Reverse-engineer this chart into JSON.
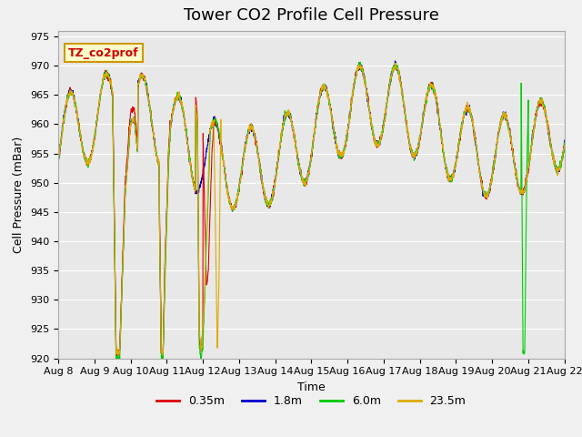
{
  "title": "Tower CO2 Profile Cell Pressure",
  "xlabel": "Time",
  "ylabel": "Cell Pressure (mBar)",
  "ylim": [
    920,
    976
  ],
  "yticks": [
    920,
    925,
    930,
    935,
    940,
    945,
    950,
    955,
    960,
    965,
    970,
    975
  ],
  "xtick_labels": [
    "Aug 8",
    "Aug 9",
    "Aug 10",
    "Aug 11",
    "Aug 12",
    "Aug 13",
    "Aug 14",
    "Aug 15",
    "Aug 16",
    "Aug 17",
    "Aug 18",
    "Aug 19",
    "Aug 20",
    "Aug 21",
    "Aug 22"
  ],
  "legend_label": "TZ_co2prof",
  "legend_box_color": "#ffffcc",
  "legend_box_edge": "#cc9900",
  "legend_text_color": "#cc0000",
  "series_labels": [
    "0.35m",
    "1.8m",
    "6.0m",
    "23.5m"
  ],
  "series_colors": [
    "#dd0000",
    "#0000cc",
    "#00cc00",
    "#ddaa00"
  ],
  "background_color": "#e8e8e8",
  "grid_color": "#ffffff",
  "title_fontsize": 13,
  "axis_fontsize": 9,
  "tick_fontsize": 8
}
